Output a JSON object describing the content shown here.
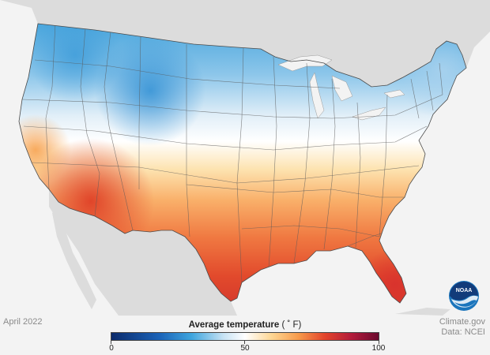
{
  "map": {
    "month_label": "April 2022",
    "credit_line1": "Climate.gov",
    "credit_line2": "Data: NCEI",
    "logo_text": "NOAA"
  },
  "legend": {
    "title": "Average temperature",
    "unit": "( ˚ F)",
    "min_label": "0",
    "mid_label": "50",
    "max_label": "100",
    "min": 0,
    "max": 100,
    "stops": [
      {
        "value": 0,
        "color": "#0b2a6b"
      },
      {
        "value": 18,
        "color": "#1b63b8"
      },
      {
        "value": 30,
        "color": "#3ea5de"
      },
      {
        "value": 42,
        "color": "#c8e3f4"
      },
      {
        "value": 50,
        "color": "#ffffff"
      },
      {
        "value": 60,
        "color": "#fdd693"
      },
      {
        "value": 70,
        "color": "#f79b4c"
      },
      {
        "value": 80,
        "color": "#e2432b"
      },
      {
        "value": 90,
        "color": "#b21b3b"
      },
      {
        "value": 100,
        "color": "#6b0a2e"
      }
    ]
  },
  "colors": {
    "background": "#f3f3f3",
    "land_neighbors": "#dcdcdc",
    "water": "#f3f3f3",
    "state_borders": "#5a5a5a",
    "noaa_blue": "#1b75bc",
    "noaa_navy": "#123b7a"
  }
}
